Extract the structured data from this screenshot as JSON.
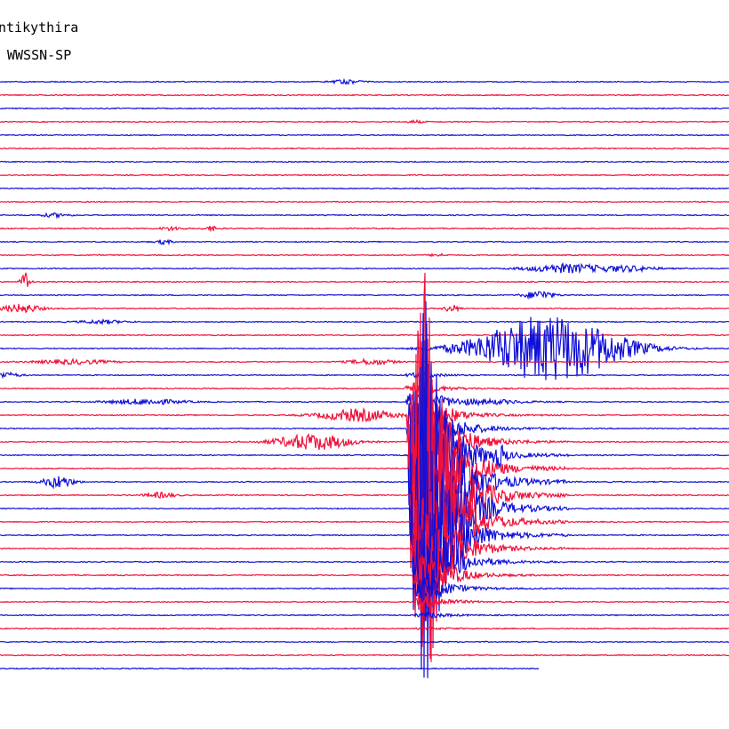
{
  "header": {
    "station": "ntikythira",
    "network": "WWSSN-SP"
  },
  "colors": {
    "trace_a": "#1010d8",
    "trace_b": "#f0103a",
    "background": "#ffffff",
    "text": "#000000"
  },
  "chart_data": {
    "type": "line",
    "description_visible": "helicorder seismogram, alternating colored traces",
    "trace_count": 45,
    "trace_colors_cycle": [
      "trace_a",
      "trace_b"
    ],
    "last_trace_end_fraction": 0.74,
    "bursts": [
      {
        "trace": 0,
        "at": 0.475,
        "amp": 2,
        "dur": 0.02
      },
      {
        "trace": 3,
        "at": 0.57,
        "amp": 1.5,
        "dur": 0.01
      },
      {
        "trace": 10,
        "at": 0.075,
        "amp": 2,
        "dur": 0.02
      },
      {
        "trace": 11,
        "at": 0.235,
        "amp": 2,
        "dur": 0.015
      },
      {
        "trace": 11,
        "at": 0.29,
        "amp": 2.5,
        "dur": 0.01
      },
      {
        "trace": 12,
        "at": 0.225,
        "amp": 2.5,
        "dur": 0.01
      },
      {
        "trace": 13,
        "at": 0.6,
        "amp": 1.5,
        "dur": 0.01
      },
      {
        "trace": 14,
        "at": 0.775,
        "amp": 5,
        "dur": 0.05
      },
      {
        "trace": 14,
        "at": 0.86,
        "amp": 3,
        "dur": 0.04
      },
      {
        "trace": 15,
        "at": 0.035,
        "amp": 12,
        "dur": 0.006
      },
      {
        "trace": 16,
        "at": 0.74,
        "amp": 5,
        "dur": 0.02
      },
      {
        "trace": 17,
        "at": 0.03,
        "amp": 5,
        "dur": 0.025
      },
      {
        "trace": 17,
        "at": 0.62,
        "amp": 4,
        "dur": 0.01
      },
      {
        "trace": 18,
        "at": 0.14,
        "amp": 2,
        "dur": 0.03
      },
      {
        "trace": 20,
        "at": 0.755,
        "amp": 38,
        "dur": 0.095
      },
      {
        "trace": 21,
        "at": 0.1,
        "amp": 2.5,
        "dur": 0.05
      },
      {
        "trace": 21,
        "at": 0.51,
        "amp": 3,
        "dur": 0.03
      },
      {
        "trace": 22,
        "at": 0.005,
        "amp": 3,
        "dur": 0.02
      },
      {
        "trace": 24,
        "at": 0.2,
        "amp": 3,
        "dur": 0.05
      },
      {
        "trace": 24,
        "at": 0.67,
        "amp": 2,
        "dur": 0.05
      },
      {
        "trace": 25,
        "at": 0.49,
        "amp": 7,
        "dur": 0.05
      },
      {
        "trace": 27,
        "at": 0.43,
        "amp": 9,
        "dur": 0.05
      },
      {
        "trace": 28,
        "at": 0.685,
        "amp": 10,
        "dur": 0.008
      },
      {
        "trace": 30,
        "at": 0.08,
        "amp": 7,
        "dur": 0.02
      },
      {
        "trace": 31,
        "at": 0.22,
        "amp": 3,
        "dur": 0.02
      }
    ],
    "main_event": {
      "start_trace": 22,
      "onset": 0.555,
      "center_trace": 31,
      "peak_amp": 260,
      "coda_end": 0.78
    }
  }
}
